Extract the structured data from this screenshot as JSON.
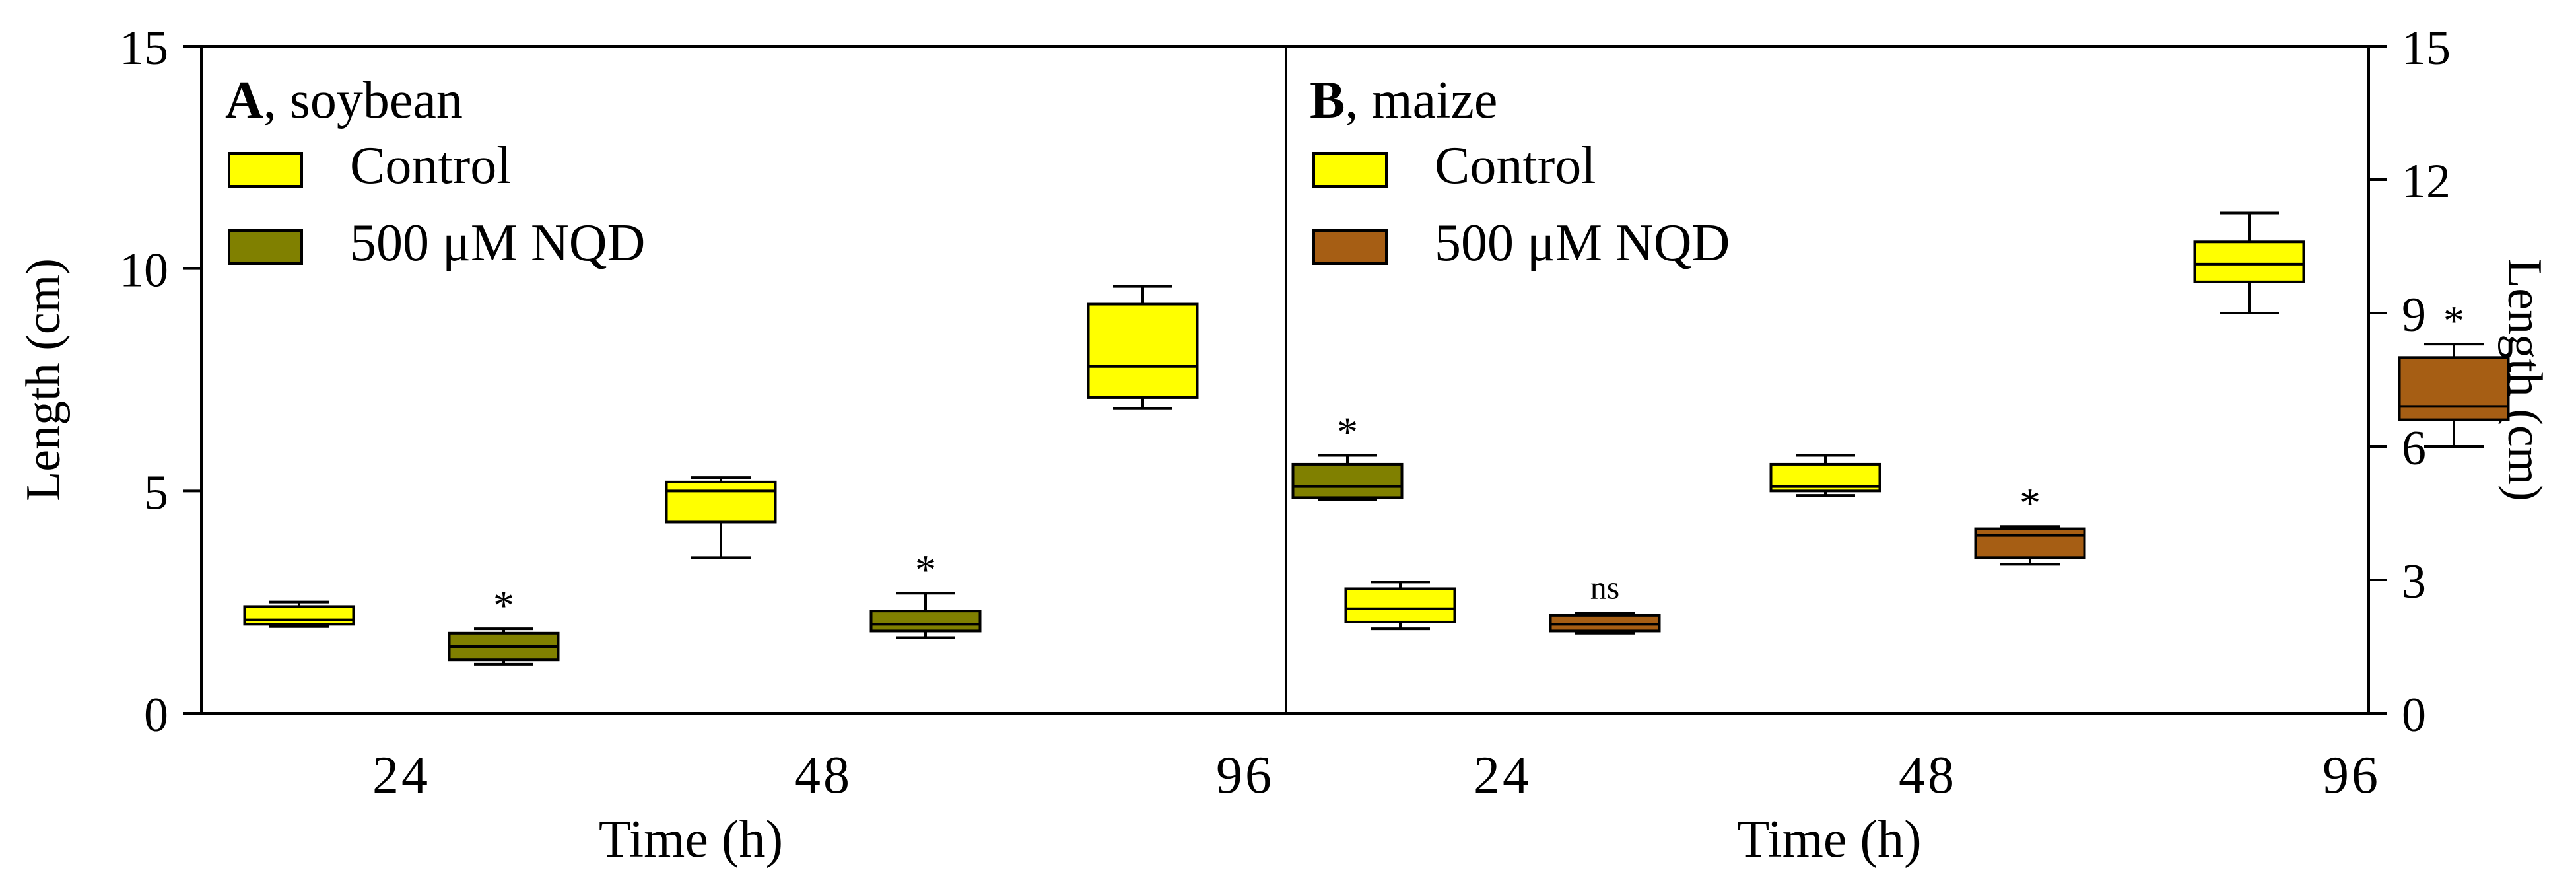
{
  "chart_data": [
    {
      "type": "box",
      "panel_letter": "A",
      "panel_name": ", soybean",
      "ylabel": "Length (cm)",
      "ylim": [
        0,
        15
      ],
      "yticks": [
        0,
        5,
        10,
        15
      ],
      "xlabel": "Time (h)",
      "categories": [
        "24",
        "48",
        "96"
      ],
      "legend": [
        {
          "name": "Control",
          "color": "#ffff00"
        },
        {
          "name": "500 μM NQD",
          "color": "#808000"
        }
      ],
      "series": [
        {
          "name": "Control",
          "color": "#ffff00",
          "boxes": [
            {
              "category": "24",
              "min": 1.95,
              "q1": 2.0,
              "median": 2.1,
              "q3": 2.4,
              "max": 2.5,
              "annotation": ""
            },
            {
              "category": "48",
              "min": 3.5,
              "q1": 4.3,
              "median": 5.0,
              "q3": 5.2,
              "max": 5.3,
              "annotation": ""
            },
            {
              "category": "96",
              "min": 6.85,
              "q1": 7.1,
              "median": 7.8,
              "q3": 9.2,
              "max": 9.6,
              "annotation": ""
            }
          ]
        },
        {
          "name": "500 μM NQD",
          "color": "#808000",
          "boxes": [
            {
              "category": "24",
              "min": 1.1,
              "q1": 1.2,
              "median": 1.5,
              "q3": 1.8,
              "max": 1.9,
              "annotation": "*"
            },
            {
              "category": "48",
              "min": 1.7,
              "q1": 1.85,
              "median": 2.0,
              "q3": 2.3,
              "max": 2.7,
              "annotation": "*"
            },
            {
              "category": "96",
              "min": 4.8,
              "q1": 4.85,
              "median": 5.1,
              "q3": 5.6,
              "max": 5.8,
              "annotation": "*"
            }
          ]
        }
      ]
    },
    {
      "type": "box",
      "panel_letter": "B",
      "panel_name": ", maize",
      "ylabel": "Length (cm)",
      "ylim": [
        0,
        15
      ],
      "yticks": [
        0,
        3,
        6,
        9,
        12,
        15
      ],
      "xlabel": "Time (h)",
      "categories": [
        "24",
        "48",
        "96"
      ],
      "legend": [
        {
          "name": "Control",
          "color": "#ffff00"
        },
        {
          "name": "500 μM NQD",
          "color": "#a65e14"
        }
      ],
      "series": [
        {
          "name": "Control",
          "color": "#ffff00",
          "boxes": [
            {
              "category": "24",
              "min": 1.9,
              "q1": 2.05,
              "median": 2.35,
              "q3": 2.8,
              "max": 2.95,
              "annotation": ""
            },
            {
              "category": "48",
              "min": 4.9,
              "q1": 5.0,
              "median": 5.1,
              "q3": 5.6,
              "max": 5.8,
              "annotation": ""
            },
            {
              "category": "96",
              "min": 9.0,
              "q1": 9.7,
              "median": 10.1,
              "q3": 10.6,
              "max": 11.25,
              "annotation": ""
            }
          ]
        },
        {
          "name": "500 μM NQD",
          "color": "#a65e14",
          "boxes": [
            {
              "category": "24",
              "min": 1.8,
              "q1": 1.85,
              "median": 2.0,
              "q3": 2.2,
              "max": 2.25,
              "annotation": "ns"
            },
            {
              "category": "48",
              "min": 3.35,
              "q1": 3.5,
              "median": 4.0,
              "q3": 4.15,
              "max": 4.2,
              "annotation": "*"
            },
            {
              "category": "96",
              "min": 6.0,
              "q1": 6.6,
              "median": 6.9,
              "q3": 8.0,
              "max": 8.3,
              "annotation": "*"
            }
          ]
        }
      ]
    }
  ]
}
